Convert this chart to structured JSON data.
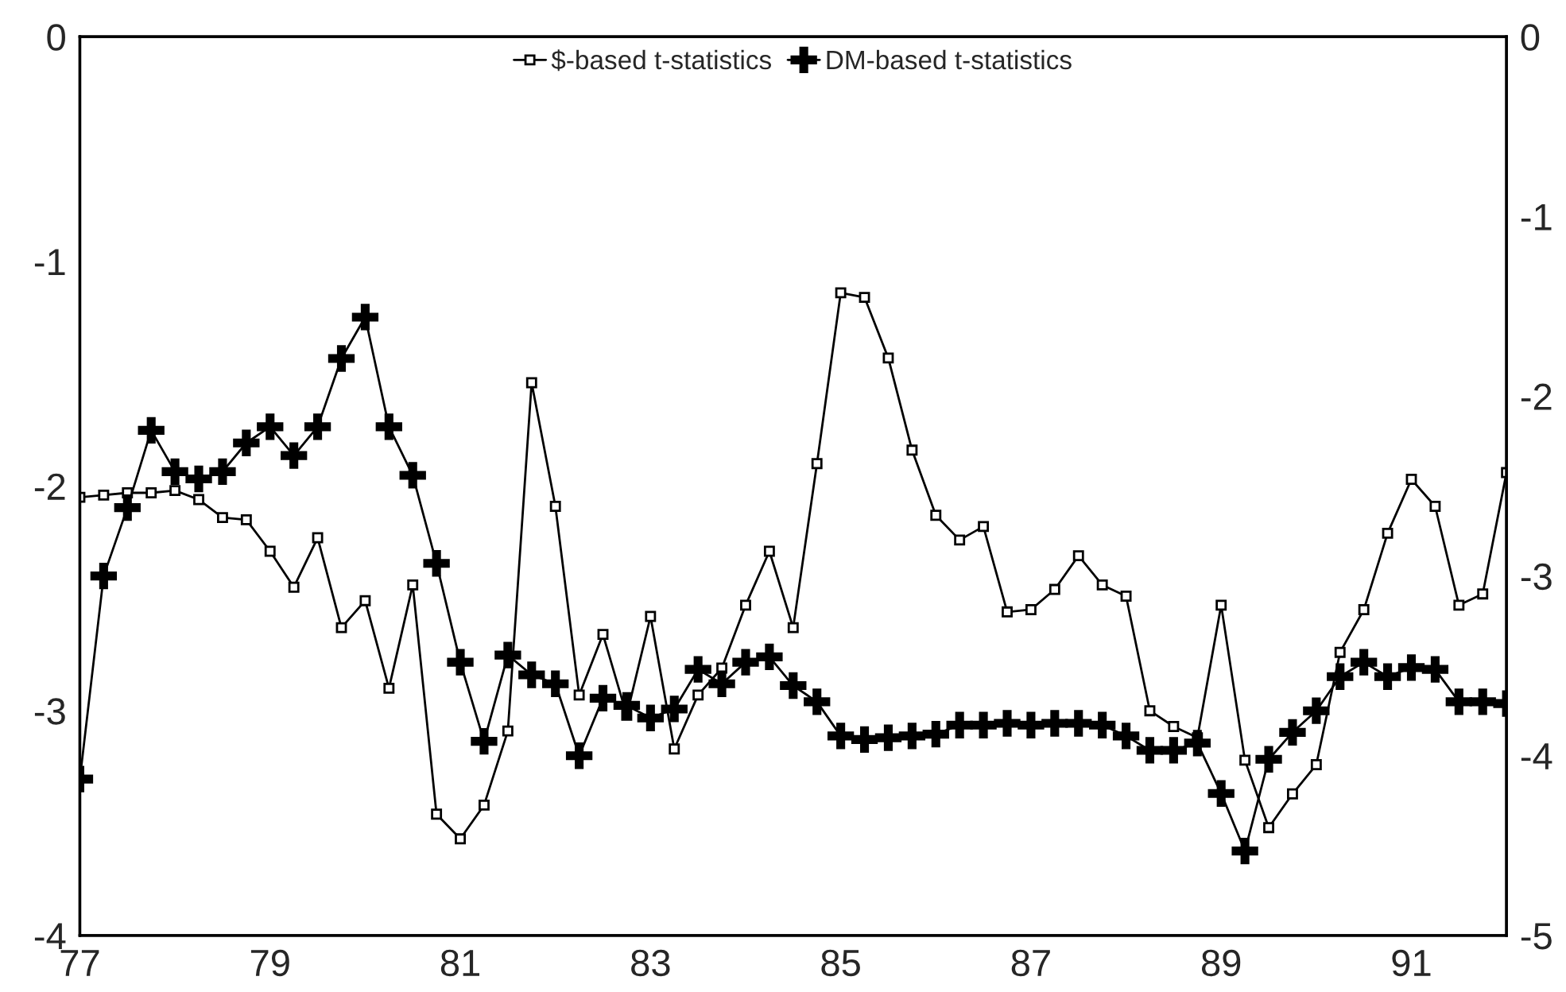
{
  "chart_data": {
    "type": "line",
    "x": [
      77,
      77.25,
      77.5,
      77.75,
      78,
      78.25,
      78.5,
      78.75,
      79,
      79.25,
      79.5,
      79.75,
      80,
      80.25,
      80.5,
      80.75,
      81,
      81.25,
      81.5,
      81.75,
      82,
      82.25,
      82.5,
      82.75,
      83,
      83.25,
      83.5,
      83.75,
      84,
      84.25,
      84.5,
      84.75,
      85,
      85.25,
      85.5,
      85.75,
      86,
      86.25,
      86.5,
      86.75,
      87,
      87.25,
      87.5,
      87.75,
      88,
      88.25,
      88.5,
      88.75,
      89,
      89.25,
      89.5,
      89.75,
      90,
      90.25,
      90.5,
      90.75,
      91,
      91.25,
      91.5,
      91.75,
      92
    ],
    "series": [
      {
        "name": "$-based t-statistics",
        "color": "#000000",
        "marker": "square",
        "values": [
          -2.05,
          -2.04,
          -2.03,
          -2.03,
          -2.02,
          -2.06,
          -2.14,
          -2.15,
          -2.29,
          -2.45,
          -2.23,
          -2.63,
          -2.51,
          -2.9,
          -2.44,
          -3.46,
          -3.57,
          -3.42,
          -3.09,
          -1.54,
          -2.09,
          -2.93,
          -2.66,
          -3.02,
          -2.58,
          -3.17,
          -2.93,
          -2.81,
          -2.53,
          -2.29,
          -2.63,
          -1.9,
          -1.14,
          -1.16,
          -1.43,
          -1.84,
          -2.13,
          -2.24,
          -2.18,
          -2.56,
          -2.55,
          -2.46,
          -2.31,
          -2.44,
          -2.49,
          -3.0,
          -3.07,
          -3.12,
          -2.53,
          -3.22,
          -3.52,
          -3.37,
          -3.24,
          -2.74,
          -2.55,
          -2.21,
          -1.97,
          -2.09,
          -2.53,
          -2.48,
          -1.94
        ]
      },
      {
        "name": "DM-based t-statistics",
        "color": "#000000",
        "marker": "cross",
        "axis": "y2",
        "values": [
          -4.13,
          -3.0,
          -2.62,
          -2.19,
          -2.42,
          -2.46,
          -2.42,
          -2.26,
          -2.17,
          -2.33,
          -2.17,
          -1.79,
          -1.56,
          -2.17,
          -2.44,
          -2.93,
          -3.48,
          -3.92,
          -3.44,
          -3.55,
          -3.6,
          -4.0,
          -3.68,
          -3.72,
          -3.79,
          -3.74,
          -3.52,
          -3.6,
          -3.48,
          -3.45,
          -3.61,
          -3.7,
          -3.89,
          -3.91,
          -3.9,
          -3.89,
          -3.88,
          -3.83,
          -3.83,
          -3.82,
          -3.83,
          -3.82,
          -3.82,
          -3.83,
          -3.89,
          -3.97,
          -3.97,
          -3.93,
          -4.21,
          -4.53,
          -4.02,
          -3.87,
          -3.75,
          -3.56,
          -3.48,
          -3.56,
          -3.51,
          -3.52,
          -3.7,
          -3.7,
          -3.71
        ]
      }
    ],
    "xlim": [
      77,
      92
    ],
    "xticks": [
      77,
      79,
      81,
      83,
      85,
      87,
      89,
      91
    ],
    "ylim": [
      -4,
      0
    ],
    "yticks": [
      -4,
      -3,
      -2,
      -1,
      0
    ],
    "y2lim": [
      -5,
      0
    ],
    "y2ticks": [
      -5,
      -4,
      -3,
      -2,
      -1,
      0
    ],
    "grid": false,
    "legend": "top",
    "line_style": "solid"
  }
}
